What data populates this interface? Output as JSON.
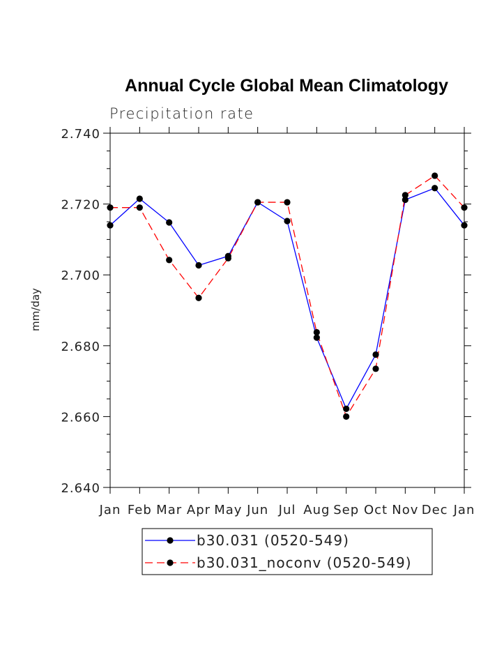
{
  "chart_data": {
    "type": "line",
    "title": "Annual Cycle Global Mean Climatology",
    "subtitle": "Precipitation rate",
    "xlabel": "",
    "ylabel": "mm/day",
    "categories": [
      "Jan",
      "Feb",
      "Mar",
      "Apr",
      "May",
      "Jun",
      "Jul",
      "Aug",
      "Sep",
      "Oct",
      "Nov",
      "Dec",
      "Jan"
    ],
    "ylim": [
      2.64,
      2.74
    ],
    "yticks": [
      "2.640",
      "2.660",
      "2.680",
      "2.700",
      "2.720",
      "2.740"
    ],
    "grid": false,
    "legend_position": "bottom",
    "series": [
      {
        "name": "b30.031 (0520-549)",
        "color": "#0000ff",
        "dash": "solid",
        "marker": "filled-circle",
        "values": [
          2.714,
          2.7215,
          2.7148,
          2.7027,
          2.7053,
          2.7205,
          2.7152,
          2.6823,
          2.6622,
          2.6775,
          2.7212,
          2.7245,
          2.714
        ]
      },
      {
        "name": "b30.031_noconv (0520-549)",
        "color": "#ff0000",
        "dash": "dashed",
        "marker": "filled-circle",
        "values": [
          2.719,
          2.719,
          2.7042,
          2.6935,
          2.7047,
          2.7205,
          2.7205,
          2.6838,
          2.66,
          2.6735,
          2.7225,
          2.728,
          2.719
        ]
      }
    ]
  }
}
